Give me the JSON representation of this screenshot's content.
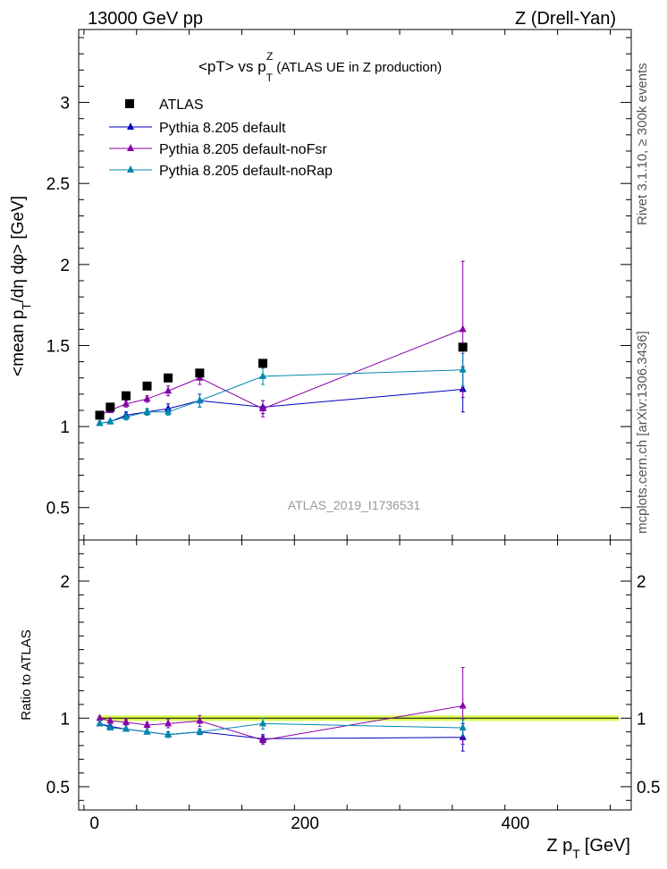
{
  "header": {
    "left": "13000 GeV pp",
    "right": "Z (Drell-Yan)"
  },
  "side_labels": {
    "rivet": "Rivet 3.1.10, ≥ 300k events",
    "mcplots": "mcplots.cern.ch [arXiv:1306.3436]"
  },
  "chart_data": {
    "type": "scatter",
    "title": "<pT> vs p_T^Z (ATLAS UE in Z production)",
    "title_parts": {
      "main": "<pT> vs p",
      "sup": "Z",
      "sub": "T",
      "rest": "(ATLAS UE in Z production)"
    },
    "watermark": "ATLAS_2019_I1736531",
    "xlabel": "Z p_T [GeV]",
    "xlabel_parts": {
      "main": "Z p",
      "sub": "T",
      "rest": "[GeV]"
    },
    "xlim": [
      -15,
      510
    ],
    "xticks": [
      0,
      200,
      400
    ],
    "xtick_labels": [
      "0",
      "200",
      "400"
    ],
    "main_panel": {
      "ylabel": "<mean p_T/dη dφ> [GeV]",
      "ylabel_parts": {
        "a": "<mean p",
        "sub": "T",
        "b": "/dη dφ> [GeV]"
      },
      "ylim": [
        0.3,
        3.45
      ],
      "yticks": [
        0.5,
        1,
        1.5,
        2,
        2.5,
        3
      ],
      "ytick_labels": [
        "0.5",
        "1",
        "1.5",
        "2",
        "2.5",
        "3"
      ],
      "legend": [
        "ATLAS",
        "Pythia 8.205 default",
        "Pythia 8.205 default-noFsr",
        "Pythia 8.205 default-noRap"
      ],
      "series": [
        {
          "name": "ATLAS",
          "color": "#000000",
          "marker": "square",
          "x": [
            5,
            15,
            30,
            50,
            70,
            100,
            160,
            350
          ],
          "values": [
            1.07,
            1.12,
            1.19,
            1.25,
            1.3,
            1.33,
            1.39,
            1.49
          ]
        },
        {
          "name": "Pythia 8.205 default",
          "color": "#0000bb",
          "marker": "triangle",
          "x": [
            5,
            15,
            30,
            50,
            70,
            100,
            160,
            350
          ],
          "values": [
            1.02,
            1.03,
            1.07,
            1.09,
            1.11,
            1.16,
            1.12,
            1.23
          ],
          "errors": [
            0.01,
            0.01,
            0.02,
            0.02,
            0.03,
            0.04,
            0.04,
            0.14
          ]
        },
        {
          "name": "Pythia 8.205 default-noFsr",
          "color": "#8800aa",
          "marker": "triangle",
          "x": [
            5,
            15,
            30,
            50,
            70,
            100,
            160,
            350
          ],
          "values": [
            1.07,
            1.1,
            1.14,
            1.17,
            1.22,
            1.3,
            1.11,
            1.6
          ],
          "errors": [
            0.01,
            0.01,
            0.02,
            0.02,
            0.03,
            0.04,
            0.05,
            0.42
          ]
        },
        {
          "name": "Pythia 8.205 default-noRap",
          "color": "#0088aa",
          "marker": "triangle",
          "x": [
            5,
            15,
            30,
            50,
            70,
            100,
            160,
            350
          ],
          "values": [
            1.02,
            1.03,
            1.06,
            1.09,
            1.09,
            1.16,
            1.31,
            1.35
          ],
          "errors": [
            0.01,
            0.01,
            0.02,
            0.02,
            0.02,
            0.04,
            0.05,
            0.1
          ]
        }
      ]
    },
    "ratio_panel": {
      "ylabel": "Ratio to ATLAS",
      "ylim": [
        0.33,
        2.3
      ],
      "yticks": [
        0.5,
        1,
        2
      ],
      "ytick_labels": [
        "0.5",
        "1",
        "2"
      ],
      "band_color": "#ddff55",
      "reference": 1,
      "series": [
        {
          "name": "Pythia 8.205 default",
          "color": "#0000bb",
          "x": [
            5,
            15,
            30,
            50,
            70,
            100,
            160,
            350
          ],
          "values": [
            0.96,
            0.94,
            0.92,
            0.9,
            0.88,
            0.9,
            0.85,
            0.86
          ],
          "errors": [
            0.01,
            0.01,
            0.01,
            0.01,
            0.02,
            0.02,
            0.03,
            0.1
          ]
        },
        {
          "name": "Pythia 8.205 default-noFsr",
          "color": "#8800aa",
          "x": [
            5,
            15,
            30,
            50,
            70,
            100,
            160,
            350
          ],
          "values": [
            1.0,
            0.98,
            0.97,
            0.95,
            0.96,
            0.98,
            0.84,
            1.09
          ],
          "errors": [
            0.01,
            0.01,
            0.02,
            0.02,
            0.03,
            0.04,
            0.03,
            0.28
          ]
        },
        {
          "name": "Pythia 8.205 default-noRap",
          "color": "#0088aa",
          "x": [
            5,
            15,
            30,
            50,
            70,
            100,
            160,
            350
          ],
          "values": [
            0.96,
            0.93,
            0.92,
            0.9,
            0.88,
            0.9,
            0.96,
            0.93
          ],
          "errors": [
            0.01,
            0.01,
            0.01,
            0.01,
            0.02,
            0.02,
            0.04,
            0.06
          ]
        }
      ]
    }
  }
}
